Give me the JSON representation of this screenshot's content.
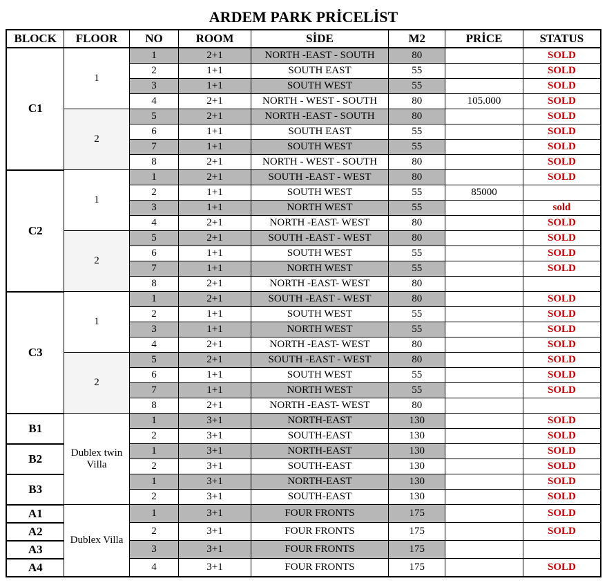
{
  "title": "ARDEM PARK PRİCELİST",
  "columns": [
    "BLOCK",
    "FLOOR",
    "NO",
    "ROOM",
    "SİDE",
    "M2",
    "PRİCE",
    "STATUS"
  ],
  "colors": {
    "shade": "#b7b7b7",
    "floor_shade": "#f4f4f4",
    "status_red": "#c00000",
    "border": "#000000",
    "bg": "#ffffff"
  },
  "fonts": {
    "family": "Times New Roman",
    "title_pt": 22,
    "header_pt": 17,
    "cell_pt": 15
  },
  "blocks": [
    {
      "name": "C1",
      "rowspan": 8,
      "floors": [
        {
          "label": "1",
          "rowspan": 4,
          "shade": false,
          "units": [
            {
              "no": "1",
              "room": "2+1",
              "side": "NORTH -EAST - SOUTH",
              "m2": "80",
              "price": "",
              "status": "SOLD",
              "shade": true,
              "status_red": true
            },
            {
              "no": "2",
              "room": "1+1",
              "side": "SOUTH EAST",
              "m2": "55",
              "price": "",
              "status": "SOLD",
              "shade": false,
              "status_red": true
            },
            {
              "no": "3",
              "room": "1+1",
              "side": "SOUTH WEST",
              "m2": "55",
              "price": "",
              "status": "SOLD",
              "shade": true,
              "status_red": true
            },
            {
              "no": "4",
              "room": "2+1",
              "side": "NORTH - WEST - SOUTH",
              "m2": "80",
              "price": "105.000",
              "status": "SOLD",
              "shade": false,
              "status_red": true
            }
          ]
        },
        {
          "label": "2",
          "rowspan": 4,
          "shade": true,
          "units": [
            {
              "no": "5",
              "room": "2+1",
              "side": "NORTH -EAST - SOUTH",
              "m2": "80",
              "price": "",
              "status": "SOLD",
              "shade": true,
              "status_red": true
            },
            {
              "no": "6",
              "room": "1+1",
              "side": "SOUTH EAST",
              "m2": "55",
              "price": "",
              "status": "SOLD",
              "shade": false,
              "status_red": true
            },
            {
              "no": "7",
              "room": "1+1",
              "side": "SOUTH WEST",
              "m2": "55",
              "price": "",
              "status": "SOLD",
              "shade": true,
              "status_red": true
            },
            {
              "no": "8",
              "room": "2+1",
              "side": "NORTH - WEST - SOUTH",
              "m2": "80",
              "price": "",
              "status": "SOLD",
              "shade": false,
              "status_red": true
            }
          ]
        }
      ]
    },
    {
      "name": "C2",
      "rowspan": 8,
      "floors": [
        {
          "label": "1",
          "rowspan": 4,
          "shade": false,
          "units": [
            {
              "no": "1",
              "room": "2+1",
              "side": "SOUTH -EAST - WEST",
              "m2": "80",
              "price": "",
              "status": "SOLD",
              "shade": true,
              "status_red": true
            },
            {
              "no": "2",
              "room": "1+1",
              "side": "SOUTH WEST",
              "m2": "55",
              "price": "85000",
              "status": "",
              "shade": false,
              "status_red": false
            },
            {
              "no": "3",
              "room": "1+1",
              "side": "NORTH WEST",
              "m2": "55",
              "price": "",
              "status": "sold",
              "shade": true,
              "status_red": true
            },
            {
              "no": "4",
              "room": "2+1",
              "side": "NORTH -EAST- WEST",
              "m2": "80",
              "price": "",
              "status": "SOLD",
              "shade": false,
              "status_red": true
            }
          ]
        },
        {
          "label": "2",
          "rowspan": 4,
          "shade": true,
          "units": [
            {
              "no": "5",
              "room": "2+1",
              "side": "SOUTH -EAST - WEST",
              "m2": "80",
              "price": "",
              "status": "SOLD",
              "shade": true,
              "status_red": true
            },
            {
              "no": "6",
              "room": "1+1",
              "side": "SOUTH WEST",
              "m2": "55",
              "price": "",
              "status": "SOLD",
              "shade": false,
              "status_red": true
            },
            {
              "no": "7",
              "room": "1+1",
              "side": "NORTH WEST",
              "m2": "55",
              "price": "",
              "status": "SOLD",
              "shade": true,
              "status_red": true
            },
            {
              "no": "8",
              "room": "2+1",
              "side": "NORTH -EAST- WEST",
              "m2": "80",
              "price": "",
              "status": "",
              "shade": false,
              "status_red": false
            }
          ]
        }
      ]
    },
    {
      "name": "C3",
      "rowspan": 8,
      "floors": [
        {
          "label": "1",
          "rowspan": 4,
          "shade": false,
          "units": [
            {
              "no": "1",
              "room": "2+1",
              "side": "SOUTH -EAST - WEST",
              "m2": "80",
              "price": "",
              "status": "SOLD",
              "shade": true,
              "status_red": true
            },
            {
              "no": "2",
              "room": "1+1",
              "side": "SOUTH WEST",
              "m2": "55",
              "price": "",
              "status": "SOLD",
              "shade": false,
              "status_red": true
            },
            {
              "no": "3",
              "room": "1+1",
              "side": "NORTH WEST",
              "m2": "55",
              "price": "",
              "status": "SOLD",
              "shade": true,
              "status_red": true
            },
            {
              "no": "4",
              "room": "2+1",
              "side": "NORTH -EAST- WEST",
              "m2": "80",
              "price": "",
              "status": "SOLD",
              "shade": false,
              "status_red": true
            }
          ]
        },
        {
          "label": "2",
          "rowspan": 4,
          "shade": true,
          "units": [
            {
              "no": "5",
              "room": "2+1",
              "side": "SOUTH -EAST - WEST",
              "m2": "80",
              "price": "",
              "status": "SOLD",
              "shade": true,
              "status_red": true
            },
            {
              "no": "6",
              "room": "1+1",
              "side": "SOUTH WEST",
              "m2": "55",
              "price": "",
              "status": "SOLD",
              "shade": false,
              "status_red": true
            },
            {
              "no": "7",
              "room": "1+1",
              "side": "NORTH WEST",
              "m2": "55",
              "price": "",
              "status": "SOLD",
              "shade": true,
              "status_red": true
            },
            {
              "no": "8",
              "room": "2+1",
              "side": "NORTH -EAST- WEST",
              "m2": "80",
              "price": "",
              "status": "",
              "shade": false,
              "status_red": false
            }
          ]
        }
      ]
    },
    {
      "name": "B1",
      "rowspan": 2,
      "floor_block": {
        "label": "Dublex twin Villa",
        "rowspan": 6,
        "for_blocks": [
          "B1",
          "B2",
          "B3"
        ]
      },
      "floors": [
        {
          "merged": true,
          "units": [
            {
              "no": "1",
              "room": "3+1",
              "side": "NORTH-EAST",
              "m2": "130",
              "price": "",
              "status": "SOLD",
              "shade": true,
              "status_red": true
            },
            {
              "no": "2",
              "room": "3+1",
              "side": "SOUTH-EAST",
              "m2": "130",
              "price": "",
              "status": "SOLD",
              "shade": false,
              "status_red": true
            }
          ]
        }
      ]
    },
    {
      "name": "B2",
      "rowspan": 2,
      "floors": [
        {
          "merged": true,
          "units": [
            {
              "no": "1",
              "room": "3+1",
              "side": "NORTH-EAST",
              "m2": "130",
              "price": "",
              "status": "SOLD",
              "shade": true,
              "status_red": true
            },
            {
              "no": "2",
              "room": "3+1",
              "side": "SOUTH-EAST",
              "m2": "130",
              "price": "",
              "status": "SOLD",
              "shade": false,
              "status_red": true
            }
          ]
        }
      ]
    },
    {
      "name": "B3",
      "rowspan": 2,
      "floors": [
        {
          "merged": true,
          "units": [
            {
              "no": "1",
              "room": "3+1",
              "side": "NORTH-EAST",
              "m2": "130",
              "price": "",
              "status": "SOLD",
              "shade": true,
              "status_red": true
            },
            {
              "no": "2",
              "room": "3+1",
              "side": "SOUTH-EAST",
              "m2": "130",
              "price": "",
              "status": "SOLD",
              "shade": false,
              "status_red": true
            }
          ]
        }
      ]
    },
    {
      "name": "A1",
      "rowspan": 1,
      "floor_block": {
        "label": "Dublex Villa",
        "rowspan": 4,
        "for_blocks": [
          "A1",
          "A2",
          "A3",
          "A4"
        ]
      },
      "floors": [
        {
          "merged": true,
          "units": [
            {
              "no": "1",
              "room": "3+1",
              "side": "FOUR FRONTS",
              "m2": "175",
              "price": "",
              "status": "SOLD",
              "shade": true,
              "status_red": true
            }
          ]
        }
      ]
    },
    {
      "name": "A2",
      "rowspan": 1,
      "floors": [
        {
          "merged": true,
          "units": [
            {
              "no": "2",
              "room": "3+1",
              "side": "FOUR FRONTS",
              "m2": "175",
              "price": "",
              "status": "SOLD",
              "shade": false,
              "status_red": true
            }
          ]
        }
      ]
    },
    {
      "name": "A3",
      "rowspan": 1,
      "floors": [
        {
          "merged": true,
          "units": [
            {
              "no": "3",
              "room": "3+1",
              "side": "FOUR FRONTS",
              "m2": "175",
              "price": "",
              "status": "",
              "shade": true,
              "status_red": false
            }
          ]
        }
      ]
    },
    {
      "name": "A4",
      "rowspan": 1,
      "floors": [
        {
          "merged": true,
          "units": [
            {
              "no": "4",
              "room": "3+1",
              "side": "FOUR FRONTS",
              "m2": "175",
              "price": "",
              "status": "SOLD",
              "shade": false,
              "status_red": true
            }
          ]
        }
      ]
    }
  ]
}
